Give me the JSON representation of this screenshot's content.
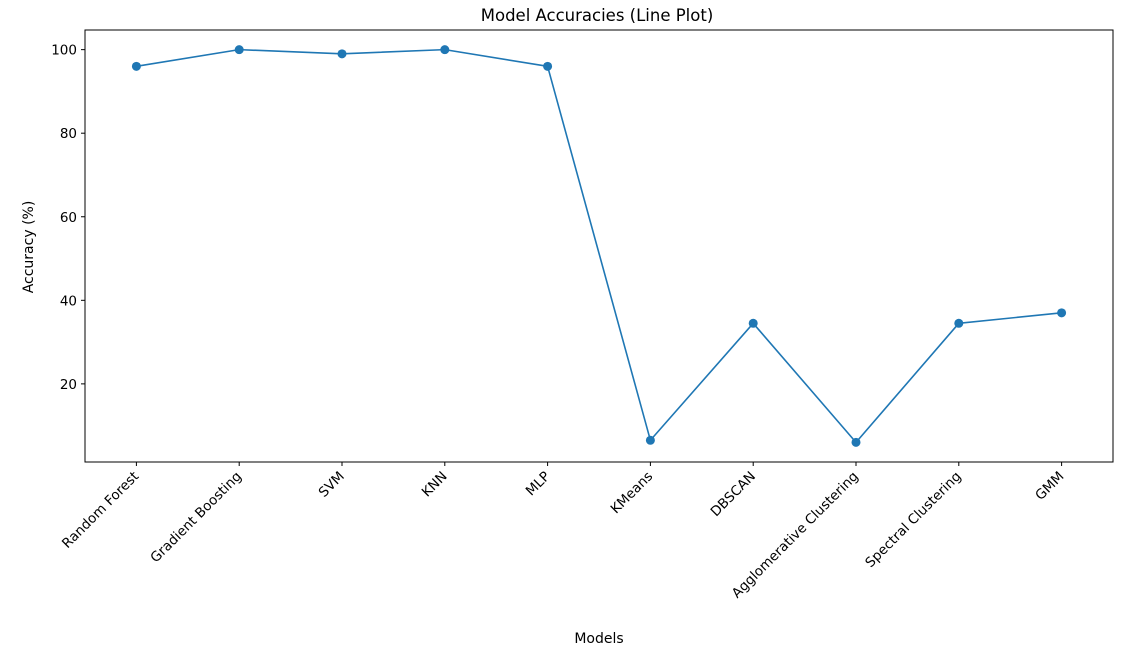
{
  "chart_data": {
    "type": "line",
    "title": "Model Accuracies (Line Plot)",
    "xlabel": "Models",
    "ylabel": "Accuracy (%)",
    "categories": [
      "Random Forest",
      "Gradient Boosting",
      "SVM",
      "KNN",
      "MLP",
      "KMeans",
      "DBSCAN",
      "Agglomerative Clustering",
      "Spectral Clustering",
      "GMM"
    ],
    "series": [
      {
        "values": [
          96,
          100,
          99,
          100,
          96,
          6.5,
          34.5,
          6,
          34.5,
          37
        ],
        "color": "#1f77b4",
        "marker": "circle"
      }
    ],
    "ylim": [
      1.3,
      104.7
    ],
    "yticks": [
      20,
      40,
      60,
      80,
      100
    ],
    "grid": false,
    "legend": "none"
  }
}
